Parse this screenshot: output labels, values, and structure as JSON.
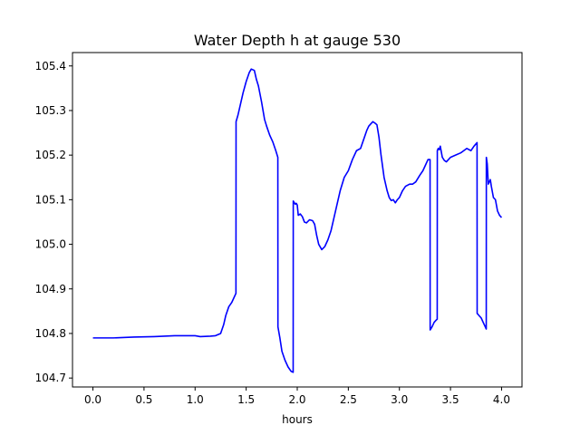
{
  "chart_data": {
    "type": "line",
    "title": "Water Depth h at gauge 530",
    "xlabel": "hours",
    "ylabel": "",
    "xlim": [
      -0.2,
      4.2
    ],
    "ylim": [
      104.68,
      105.43
    ],
    "xticks": [
      0.0,
      0.5,
      1.0,
      1.5,
      2.0,
      2.5,
      3.0,
      3.5,
      4.0
    ],
    "xtick_labels": [
      "0.0",
      "0.5",
      "1.0",
      "1.5",
      "2.0",
      "2.5",
      "3.0",
      "3.5",
      "4.0"
    ],
    "yticks": [
      104.7,
      104.8,
      104.9,
      105.0,
      105.1,
      105.2,
      105.3,
      105.4
    ],
    "ytick_labels": [
      "104.7",
      "104.8",
      "104.9",
      "105.0",
      "105.1",
      "105.2",
      "105.3",
      "105.4"
    ],
    "grid": false,
    "series": [
      {
        "color": "#0000ff",
        "x": [
          0.0,
          0.2,
          0.4,
          0.6,
          0.8,
          1.0,
          1.05,
          1.15,
          1.2,
          1.25,
          1.28,
          1.3,
          1.33,
          1.36,
          1.4,
          1.401,
          1.42,
          1.44,
          1.47,
          1.5,
          1.53,
          1.55,
          1.58,
          1.6,
          1.62,
          1.65,
          1.68,
          1.7,
          1.73,
          1.76,
          1.79,
          1.81,
          1.811,
          1.83,
          1.85,
          1.88,
          1.91,
          1.94,
          1.96,
          1.961,
          1.98,
          1.99,
          2.0,
          2.01,
          2.03,
          2.05,
          2.07,
          2.09,
          2.12,
          2.15,
          2.17,
          2.19,
          2.21,
          2.24,
          2.27,
          2.3,
          2.33,
          2.36,
          2.39,
          2.42,
          2.46,
          2.5,
          2.54,
          2.58,
          2.62,
          2.65,
          2.68,
          2.7,
          2.72,
          2.74,
          2.76,
          2.78,
          2.8,
          2.82,
          2.85,
          2.88,
          2.9,
          2.92,
          2.94,
          2.96,
          2.98,
          3.0,
          3.03,
          3.06,
          3.1,
          3.13,
          3.16,
          3.2,
          3.23,
          3.26,
          3.28,
          3.3,
          3.301,
          3.32,
          3.34,
          3.36,
          3.37,
          3.371,
          3.38,
          3.39,
          3.4,
          3.42,
          3.44,
          3.46,
          3.5,
          3.55,
          3.6,
          3.63,
          3.66,
          3.7,
          3.73,
          3.76,
          3.761,
          3.78,
          3.8,
          3.82,
          3.84,
          3.85,
          3.851,
          3.86,
          3.87,
          3.88,
          3.89,
          3.9,
          3.92,
          3.94,
          3.96,
          3.98,
          4.0
        ],
        "y": [
          104.79,
          104.79,
          104.792,
          104.793,
          104.795,
          104.795,
          104.793,
          104.794,
          104.795,
          104.8,
          104.82,
          104.84,
          104.86,
          104.87,
          104.89,
          105.275,
          105.29,
          105.31,
          105.34,
          105.365,
          105.385,
          105.393,
          105.39,
          105.37,
          105.355,
          105.32,
          105.28,
          105.265,
          105.245,
          105.23,
          105.21,
          105.195,
          104.815,
          104.79,
          104.76,
          104.74,
          104.725,
          104.715,
          104.713,
          105.097,
          105.09,
          105.092,
          105.088,
          105.065,
          105.068,
          105.062,
          105.05,
          105.048,
          105.055,
          105.053,
          105.045,
          105.02,
          105.0,
          104.988,
          104.995,
          105.01,
          105.03,
          105.06,
          105.09,
          105.12,
          105.15,
          105.165,
          105.19,
          105.21,
          105.215,
          105.235,
          105.255,
          105.265,
          105.27,
          105.275,
          105.272,
          105.268,
          105.24,
          105.2,
          105.15,
          105.12,
          105.105,
          105.098,
          105.1,
          105.093,
          105.1,
          105.105,
          105.12,
          105.13,
          105.135,
          105.135,
          105.14,
          105.155,
          105.165,
          105.18,
          105.19,
          105.19,
          104.808,
          104.815,
          104.825,
          104.83,
          104.832,
          105.21,
          105.215,
          105.212,
          105.22,
          105.195,
          105.188,
          105.185,
          105.195,
          105.2,
          105.205,
          105.21,
          105.215,
          105.21,
          105.22,
          105.228,
          104.845,
          104.84,
          104.835,
          104.825,
          104.815,
          104.81,
          105.195,
          105.18,
          105.135,
          105.14,
          105.145,
          105.13,
          105.105,
          105.1,
          105.075,
          105.065,
          105.06
        ]
      }
    ]
  }
}
